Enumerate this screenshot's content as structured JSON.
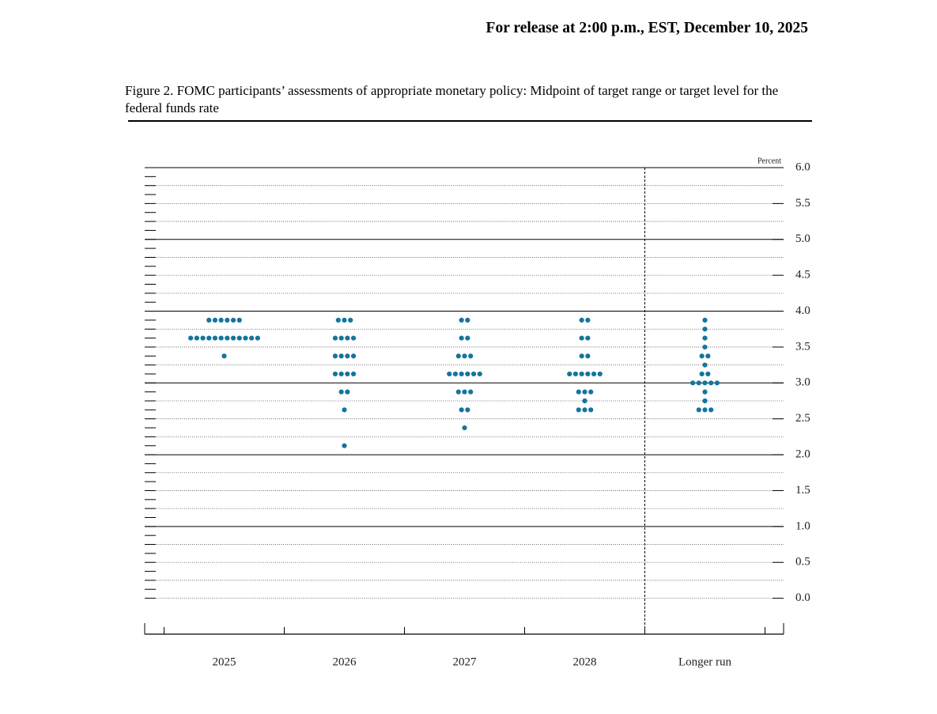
{
  "header": "For release at 2:00 p.m., EST, December 10, 2025",
  "chart_data": {
    "type": "dot",
    "title": "Figure 2. FOMC participants’ assessments of appropriate monetary policy: Midpoint of target range or target level for the federal funds rate",
    "y_unit_label": "Percent",
    "color": "#13759c",
    "categories": [
      "2025",
      "2026",
      "2027",
      "2028",
      "Longer run"
    ],
    "dots": [
      [
        {
          "rate": 3.875,
          "count": 6
        },
        {
          "rate": 3.625,
          "count": 12
        },
        {
          "rate": 3.375,
          "count": 1
        }
      ],
      [
        {
          "rate": 3.875,
          "count": 3
        },
        {
          "rate": 3.625,
          "count": 4
        },
        {
          "rate": 3.375,
          "count": 4
        },
        {
          "rate": 3.125,
          "count": 4
        },
        {
          "rate": 2.875,
          "count": 2
        },
        {
          "rate": 2.625,
          "count": 1
        },
        {
          "rate": 2.125,
          "count": 1
        }
      ],
      [
        {
          "rate": 3.875,
          "count": 2
        },
        {
          "rate": 3.625,
          "count": 2
        },
        {
          "rate": 3.375,
          "count": 3
        },
        {
          "rate": 3.125,
          "count": 6
        },
        {
          "rate": 2.875,
          "count": 3
        },
        {
          "rate": 2.625,
          "count": 2
        },
        {
          "rate": 2.375,
          "count": 1
        }
      ],
      [
        {
          "rate": 3.875,
          "count": 2
        },
        {
          "rate": 3.625,
          "count": 2
        },
        {
          "rate": 3.375,
          "count": 2
        },
        {
          "rate": 3.125,
          "count": 6
        },
        {
          "rate": 2.875,
          "count": 3
        },
        {
          "rate": 2.75,
          "count": 1
        },
        {
          "rate": 2.625,
          "count": 3
        }
      ],
      [
        {
          "rate": 3.875,
          "count": 1
        },
        {
          "rate": 3.75,
          "count": 1
        },
        {
          "rate": 3.625,
          "count": 1
        },
        {
          "rate": 3.5,
          "count": 1
        },
        {
          "rate": 3.375,
          "count": 2
        },
        {
          "rate": 3.25,
          "count": 1
        },
        {
          "rate": 3.125,
          "count": 2
        },
        {
          "rate": 3.0,
          "count": 5
        },
        {
          "rate": 2.875,
          "count": 1
        },
        {
          "rate": 2.75,
          "count": 1
        },
        {
          "rate": 2.625,
          "count": 3
        }
      ]
    ],
    "ylim": [
      -0.5,
      6.0
    ],
    "yticks": [
      {
        "value": 0,
        "label": "0.0"
      },
      0.5,
      {
        "value": 1,
        "label": "1.0"
      },
      1.5,
      {
        "value": 2,
        "label": "2.0"
      },
      2.5,
      {
        "value": 3,
        "label": "3.0"
      },
      3.5,
      {
        "value": 4,
        "label": "4.0"
      },
      4.5,
      {
        "value": 5,
        "label": "5.0"
      },
      5.5,
      {
        "value": 6,
        "label": "6.0"
      }
    ]
  }
}
